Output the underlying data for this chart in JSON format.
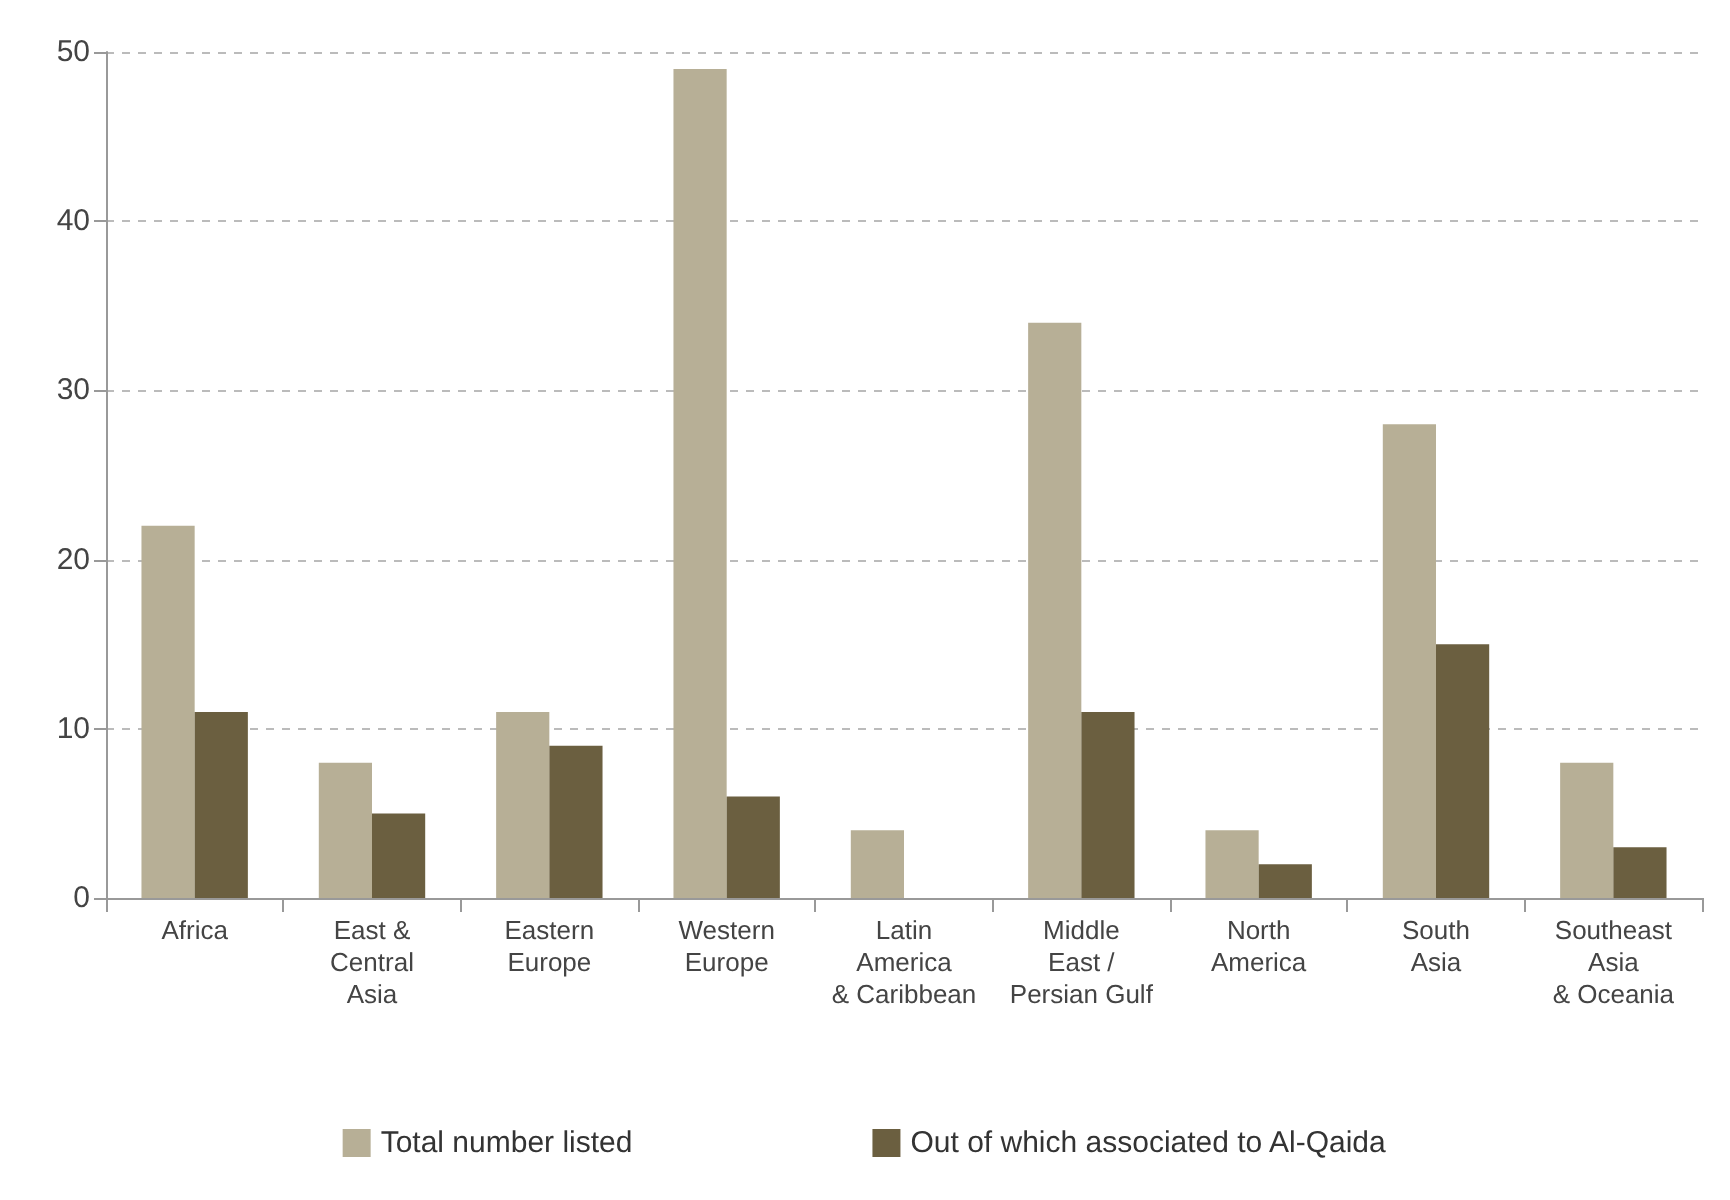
{
  "chart_data": {
    "type": "bar",
    "categories": [
      "Africa",
      "East &\nCentral\nAsia",
      "Eastern\nEurope",
      "Western\nEurope",
      "Latin\nAmerica\n& Caribbean",
      "Middle\nEast /\nPersian Gulf",
      "North\nAmerica",
      "South\nAsia",
      "Southeast\nAsia\n& Oceania"
    ],
    "series": [
      {
        "name": "Total number listed",
        "color": "#b7af96",
        "values": [
          22,
          8,
          11,
          49,
          4,
          34,
          4,
          28,
          8
        ]
      },
      {
        "name": "Out of which associated to Al-Qaida",
        "color": "#6b5f40",
        "values": [
          11,
          5,
          9,
          6,
          null,
          11,
          2,
          15,
          3
        ]
      }
    ],
    "ylim": [
      0,
      50
    ],
    "yticks": [
      0,
      10,
      20,
      30,
      40,
      50
    ],
    "grid": "y",
    "legend": "bottom"
  }
}
